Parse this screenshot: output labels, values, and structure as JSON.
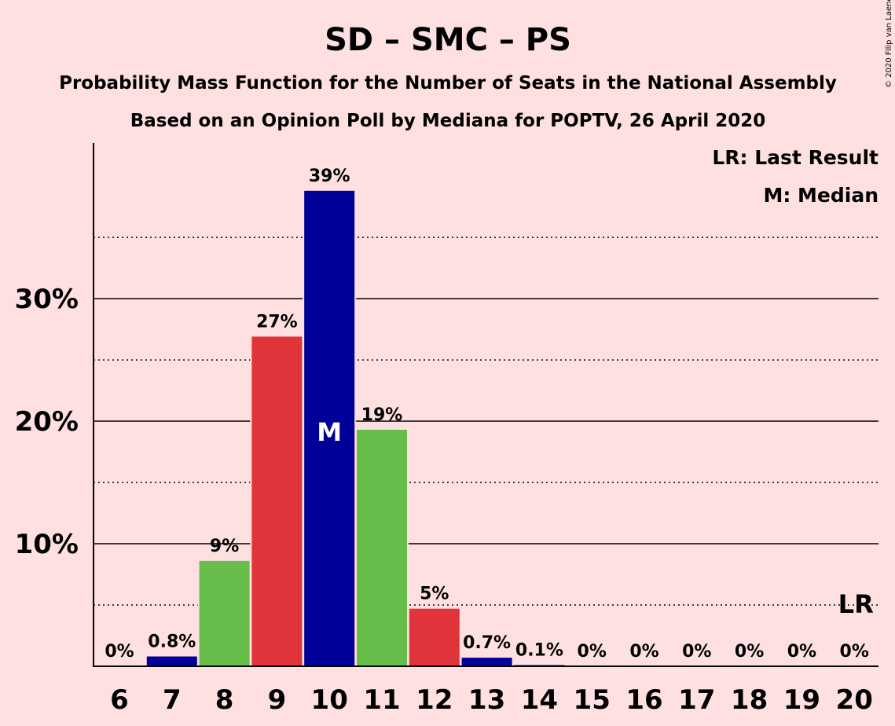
{
  "chart_data": {
    "type": "bar",
    "title": "SD – SMC – PS",
    "subtitle1": "Probability Mass Function for the Number of Seats in the National Assembly",
    "subtitle2": "Based on an Opinion Poll by Mediana for POPTV, 26 April 2020",
    "copyright": "© 2020 Filip van Laenen",
    "legend": {
      "lr": "LR: Last Result",
      "m": "M: Median",
      "placement": "top-right"
    },
    "categories": [
      "6",
      "7",
      "8",
      "9",
      "10",
      "11",
      "12",
      "13",
      "14",
      "15",
      "16",
      "17",
      "18",
      "19",
      "20"
    ],
    "values": [
      0,
      0.8,
      8.6,
      26.9,
      38.8,
      19.3,
      4.7,
      0.7,
      0.1,
      0,
      0,
      0,
      0,
      0,
      0
    ],
    "labels": [
      "0%",
      "0.8%",
      "9%",
      "27%",
      "39%",
      "19%",
      "5%",
      "0.7%",
      "0.1%",
      "0%",
      "0%",
      "0%",
      "0%",
      "0%",
      "0%"
    ],
    "bar_colors": [
      "#000099",
      "#000099",
      "#66bd4a",
      "#e0333a",
      "#000099",
      "#66bd4a",
      "#e0333a",
      "#000099",
      "#000099",
      "#66bd4a",
      "#e0333a",
      "#000099",
      "#66bd4a",
      "#e0333a",
      "#000099"
    ],
    "ylim": [
      0,
      42.7
    ],
    "yticks": [
      {
        "value": 10,
        "label": "10%"
      },
      {
        "value": 20,
        "label": "20%"
      },
      {
        "value": 30,
        "label": "30%"
      }
    ],
    "minor_grid": [
      5,
      15,
      25,
      35
    ],
    "median_category": "10",
    "median_marker": "M",
    "last_result_category": "20",
    "last_result_marker": "LR"
  }
}
